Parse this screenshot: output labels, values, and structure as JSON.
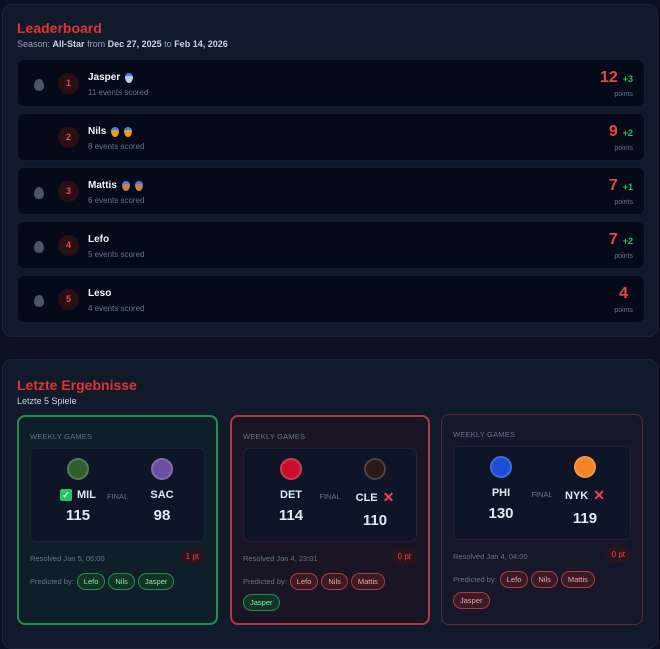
{
  "leaderboard": {
    "title": "Leaderboard",
    "season_prefix": "Season:",
    "season": "All-Star",
    "from_word": "from",
    "start": "Dec 27, 2025",
    "to_word": "to",
    "end": "Feb 14, 2026",
    "rows": [
      {
        "rank": "1",
        "name": "Jasper",
        "medals": [
          "silver"
        ],
        "events": "11 events scored",
        "points": "12",
        "delta": "+3",
        "points_label": "points",
        "flame": true
      },
      {
        "rank": "2",
        "name": "Nils",
        "medals": [
          "gold",
          "gold"
        ],
        "events": "8 events scored",
        "points": "9",
        "delta": "+2",
        "points_label": "points",
        "flame": false
      },
      {
        "rank": "3",
        "name": "Mattis",
        "medals": [
          "bronze",
          "bronze"
        ],
        "events": "6 events scored",
        "points": "7",
        "delta": "+1",
        "points_label": "points",
        "flame": true
      },
      {
        "rank": "4",
        "name": "Lefo",
        "medals": [],
        "events": "5 events scored",
        "points": "7",
        "delta": "+2",
        "points_label": "points",
        "flame": true
      },
      {
        "rank": "5",
        "name": "Leso",
        "medals": [],
        "events": "4 events scored",
        "points": "4",
        "delta": "",
        "points_label": "points",
        "flame": true
      }
    ]
  },
  "results": {
    "title": "Letzte Ergebnisse",
    "subtitle": "Letzte 5 Spiele",
    "predicted_label": "Predicted by:",
    "games": [
      {
        "category": "WEEKLY GAMES",
        "status": "FINAL",
        "home": {
          "abbr": "MIL",
          "score": "115",
          "mark": "check",
          "color": "#2f5f2f"
        },
        "away": {
          "abbr": "SAC",
          "score": "98",
          "mark": "",
          "color": "#6b4fa0"
        },
        "resolved": "Resolved Jan 5, 06:00",
        "points": "1 pt",
        "outcome": "win",
        "predictors": [
          {
            "name": "Lefo",
            "ok": true
          },
          {
            "name": "Nils",
            "ok": true
          },
          {
            "name": "Jasper",
            "ok": true
          }
        ]
      },
      {
        "category": "WEEKLY GAMES",
        "status": "FINAL",
        "home": {
          "abbr": "DET",
          "score": "114",
          "mark": "",
          "color": "#c8102e"
        },
        "away": {
          "abbr": "CLE",
          "score": "110",
          "mark": "x",
          "color": "#2a1a1a"
        },
        "resolved": "Resolved Jan 4, 23:01",
        "points": "0 pt",
        "outcome": "lose",
        "predictors": [
          {
            "name": "Lefo",
            "ok": false
          },
          {
            "name": "Nils",
            "ok": false
          },
          {
            "name": "Mattis",
            "ok": false
          },
          {
            "name": "Jasper",
            "ok": true
          }
        ]
      },
      {
        "category": "WEEKLY GAMES",
        "status": "FINAL",
        "home": {
          "abbr": "PHI",
          "score": "130",
          "mark": "",
          "color": "#1d4ed8"
        },
        "away": {
          "abbr": "NYK",
          "score": "119",
          "mark": "x",
          "color": "#f58426"
        },
        "resolved": "Resolved Jan 4, 04:00",
        "points": "0 pt",
        "outcome": "lose2",
        "predictors": [
          {
            "name": "Lefo",
            "ok": false
          },
          {
            "name": "Nils",
            "ok": false
          },
          {
            "name": "Mattis",
            "ok": false
          },
          {
            "name": "Jasper",
            "ok": false
          }
        ]
      }
    ]
  },
  "colors": {
    "accent": "#e3342f",
    "positive": "#22c55e",
    "silver": "#c7c9e0",
    "gold": "#f59e0b",
    "bronze": "#cd7f52"
  }
}
